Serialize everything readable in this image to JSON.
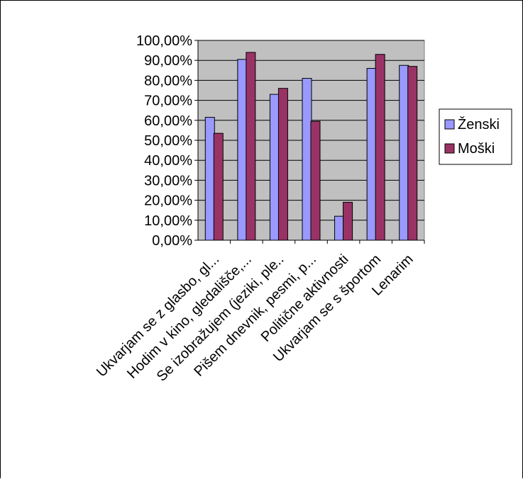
{
  "chart_data": {
    "type": "bar",
    "categories": [
      "Ukvarjam se z glasbo, gl...",
      "Hodim v kino, gledališče,...",
      "Se izobražujem (jeziki, ple..",
      "Pišem dnevnik, pesmi, p...",
      "Politične aktivnosti",
      "Ukvarjam se s športom",
      "Lenarim"
    ],
    "series": [
      {
        "name": "Ženski",
        "values": [
          61.5,
          90.5,
          73.0,
          81.0,
          12.0,
          86.0,
          87.5
        ],
        "color": "#9999ff"
      },
      {
        "name": "Moški",
        "values": [
          53.5,
          94.0,
          76.0,
          59.5,
          19.0,
          93.0,
          87.0
        ],
        "color": "#993366"
      }
    ],
    "ylim": [
      0,
      100
    ],
    "yticks": [
      "0,00%",
      "10,00%",
      "20,00%",
      "30,00%",
      "40,00%",
      "50,00%",
      "60,00%",
      "70,00%",
      "80,00%",
      "90,00%",
      "100,00%"
    ],
    "grid": true,
    "plot_background": "#c0c0c0",
    "legend_position": "right",
    "title": "",
    "xlabel": "",
    "ylabel": ""
  }
}
